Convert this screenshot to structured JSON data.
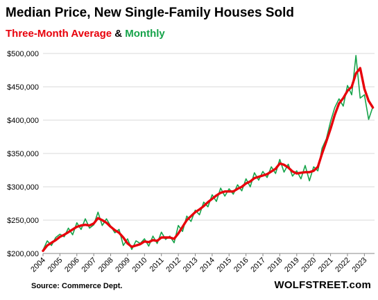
{
  "header": {
    "title": "Median Price, New Single-Family Houses Sold",
    "subtitle_part1": "Three-Month Average",
    "subtitle_amp": " & ",
    "subtitle_part2": "Monthly"
  },
  "footer": {
    "source": "Source: Commerce Dept.",
    "brand": "WOLFSTREET.com"
  },
  "colors": {
    "three_month": "#e8000b",
    "monthly": "#16a34a",
    "grid": "#d9d9d9"
  },
  "chart_data": {
    "type": "line",
    "title": "Median Price, New Single-Family Houses Sold",
    "xlabel": "",
    "ylabel": "",
    "ylim": [
      200000,
      500000
    ],
    "xlim": [
      2004,
      2023.6
    ],
    "grid": true,
    "y_ticks": [
      200000,
      250000,
      300000,
      350000,
      400000,
      450000,
      500000
    ],
    "y_tick_labels": [
      "$200,000",
      "$250,000",
      "$300,000",
      "$350,000",
      "$400,000",
      "$450,000",
      "$500,000"
    ],
    "x_ticks": [
      2004,
      2005,
      2006,
      2007,
      2008,
      2009,
      2010,
      2011,
      2012,
      2013,
      2014,
      2015,
      2016,
      2017,
      2018,
      2019,
      2020,
      2021,
      2022,
      2023
    ],
    "x_tick_labels": [
      "2004",
      "2005",
      "2006",
      "2007",
      "2008",
      "2009",
      "2010",
      "2011",
      "2012",
      "2013",
      "2014",
      "2015",
      "2016",
      "2017",
      "2018",
      "2019",
      "2020",
      "2021",
      "2022",
      "2023"
    ],
    "series": [
      {
        "name": "Monthly",
        "color": "#16a34a",
        "x": [
          2004.0,
          2004.25,
          2004.5,
          2004.75,
          2005.0,
          2005.25,
          2005.5,
          2005.75,
          2006.0,
          2006.25,
          2006.5,
          2006.75,
          2007.0,
          2007.25,
          2007.5,
          2007.75,
          2008.0,
          2008.25,
          2008.5,
          2008.75,
          2009.0,
          2009.25,
          2009.5,
          2009.75,
          2010.0,
          2010.25,
          2010.5,
          2010.75,
          2011.0,
          2011.25,
          2011.5,
          2011.75,
          2012.0,
          2012.25,
          2012.5,
          2012.75,
          2013.0,
          2013.25,
          2013.5,
          2013.75,
          2014.0,
          2014.25,
          2014.5,
          2014.75,
          2015.0,
          2015.25,
          2015.5,
          2015.75,
          2016.0,
          2016.25,
          2016.5,
          2016.75,
          2017.0,
          2017.25,
          2017.5,
          2017.75,
          2018.0,
          2018.25,
          2018.5,
          2018.75,
          2019.0,
          2019.25,
          2019.5,
          2019.75,
          2020.0,
          2020.25,
          2020.5,
          2020.75,
          2021.0,
          2021.25,
          2021.5,
          2021.75,
          2022.0,
          2022.25,
          2022.5,
          2022.75,
          2023.0,
          2023.25,
          2023.5
        ],
        "values": [
          205000,
          219000,
          212000,
          224000,
          229000,
          225000,
          238000,
          228000,
          246000,
          236000,
          252000,
          238000,
          243000,
          262000,
          242000,
          252000,
          241000,
          231000,
          236000,
          212000,
          222000,
          206000,
          219000,
          215000,
          222000,
          211000,
          226000,
          215000,
          232000,
          221000,
          226000,
          216000,
          242000,
          233000,
          256000,
          248000,
          265000,
          258000,
          277000,
          270000,
          288000,
          278000,
          298000,
          286000,
          297000,
          289000,
          303000,
          294000,
          312000,
          300000,
          321000,
          310000,
          323000,
          314000,
          330000,
          320000,
          341000,
          322000,
          334000,
          316000,
          324000,
          312000,
          332000,
          309000,
          330000,
          324000,
          358000,
          372000,
          398000,
          419000,
          432000,
          421000,
          452000,
          438000,
          497000,
          433000,
          438000,
          401000,
          420000
        ]
      },
      {
        "name": "Three-Month Average",
        "color": "#e8000b",
        "x": [
          2004.0,
          2004.25,
          2004.5,
          2004.75,
          2005.0,
          2005.25,
          2005.5,
          2005.75,
          2006.0,
          2006.25,
          2006.5,
          2006.75,
          2007.0,
          2007.25,
          2007.5,
          2007.75,
          2008.0,
          2008.25,
          2008.5,
          2008.75,
          2009.0,
          2009.25,
          2009.5,
          2009.75,
          2010.0,
          2010.25,
          2010.5,
          2010.75,
          2011.0,
          2011.25,
          2011.5,
          2011.75,
          2012.0,
          2012.25,
          2012.5,
          2012.75,
          2013.0,
          2013.25,
          2013.5,
          2013.75,
          2014.0,
          2014.25,
          2014.5,
          2014.75,
          2015.0,
          2015.25,
          2015.5,
          2015.75,
          2016.0,
          2016.25,
          2016.5,
          2016.75,
          2017.0,
          2017.25,
          2017.5,
          2017.75,
          2018.0,
          2018.25,
          2018.5,
          2018.75,
          2019.0,
          2019.25,
          2019.5,
          2019.75,
          2020.0,
          2020.25,
          2020.5,
          2020.75,
          2021.0,
          2021.25,
          2021.5,
          2021.75,
          2022.0,
          2022.25,
          2022.5,
          2022.75,
          2023.0,
          2023.25,
          2023.5
        ],
        "values": [
          204000,
          212000,
          216000,
          220000,
          225000,
          228000,
          232000,
          236000,
          240000,
          242000,
          243000,
          242000,
          245000,
          253000,
          250000,
          246000,
          240000,
          235000,
          231000,
          224000,
          215000,
          210000,
          212000,
          214000,
          218000,
          217000,
          220000,
          219000,
          224000,
          224000,
          224000,
          222000,
          230000,
          240000,
          250000,
          256000,
          262000,
          266000,
          271000,
          277000,
          282000,
          287000,
          291000,
          293000,
          293000,
          293000,
          297000,
          300000,
          305000,
          308000,
          313000,
          315000,
          317000,
          319000,
          323000,
          327000,
          335000,
          333000,
          329000,
          323000,
          320000,
          321000,
          322000,
          322000,
          324000,
          330000,
          350000,
          368000,
          387000,
          408000,
          425000,
          433000,
          444000,
          450000,
          470000,
          478000,
          447000,
          429000,
          419000
        ]
      }
    ]
  }
}
